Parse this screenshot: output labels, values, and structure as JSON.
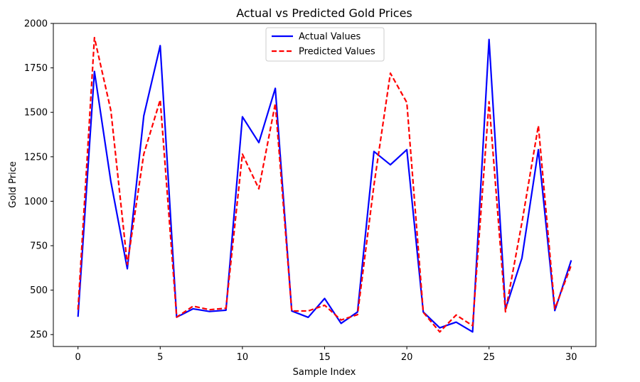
{
  "chart_data": {
    "type": "line",
    "title": "Actual vs Predicted Gold Prices",
    "xlabel": "Sample Index",
    "ylabel": "Gold Price",
    "xlim": [
      -1.5,
      31.5
    ],
    "ylim": [
      183,
      2000
    ],
    "xticks": [
      0,
      5,
      10,
      15,
      20,
      25,
      30
    ],
    "yticks": [
      250,
      500,
      750,
      1000,
      1250,
      1500,
      1750,
      2000
    ],
    "grid": false,
    "legend_position": "top-center",
    "x": [
      0,
      1,
      2,
      3,
      4,
      5,
      6,
      7,
      8,
      9,
      10,
      11,
      12,
      13,
      14,
      15,
      16,
      17,
      18,
      19,
      20,
      21,
      22,
      23,
      24,
      25,
      26,
      27,
      28,
      29,
      30
    ],
    "series": [
      {
        "name": "Actual Values",
        "color": "#0000ff",
        "style": "solid",
        "values": [
          350,
          1730,
          1110,
          620,
          1480,
          1875,
          348,
          395,
          380,
          387,
          1475,
          1330,
          1635,
          383,
          347,
          453,
          313,
          377,
          1280,
          1205,
          1290,
          377,
          288,
          320,
          265,
          1910,
          393,
          680,
          1290,
          385,
          668
        ]
      },
      {
        "name": "Predicted Values",
        "color": "#ff0000",
        "style": "dashed",
        "values": [
          390,
          1920,
          1510,
          645,
          1265,
          1570,
          348,
          410,
          390,
          398,
          1265,
          1070,
          1550,
          383,
          383,
          415,
          332,
          362,
          1090,
          1720,
          1555,
          375,
          265,
          360,
          300,
          1560,
          378,
          880,
          1425,
          395,
          640
        ]
      }
    ]
  }
}
